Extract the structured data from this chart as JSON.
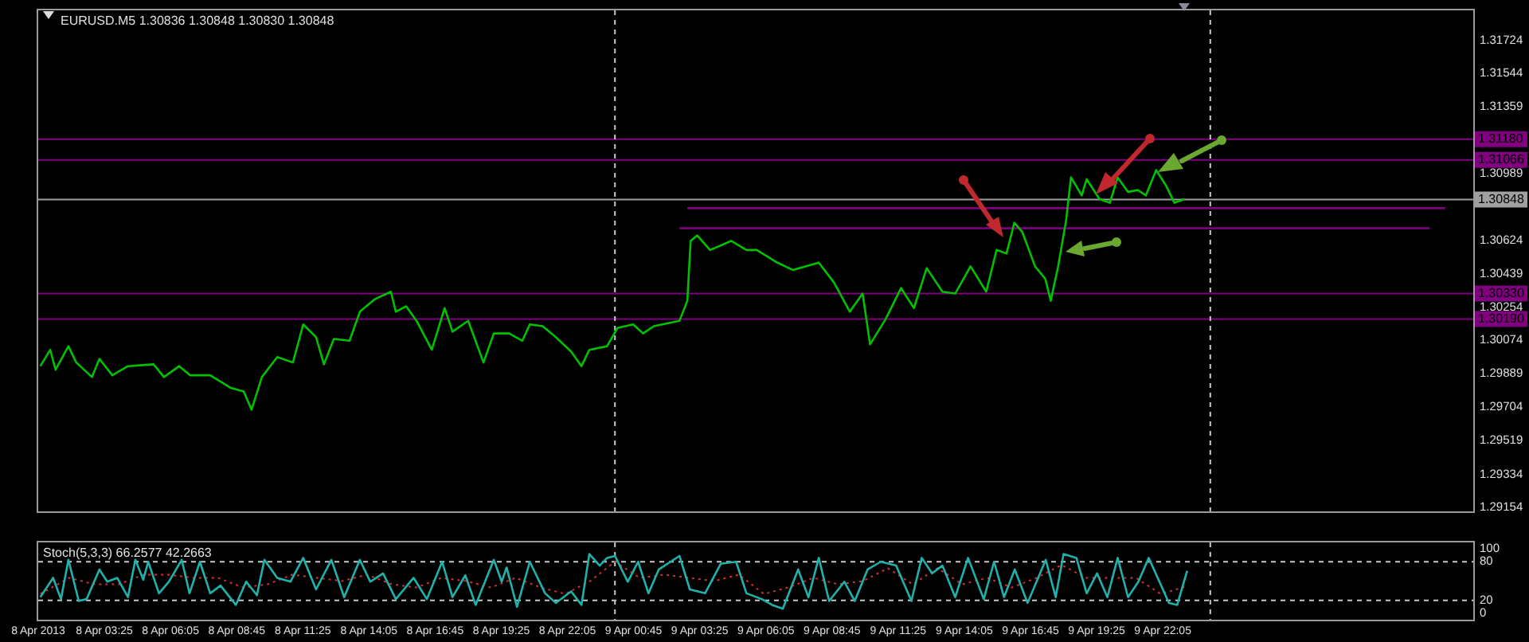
{
  "chart_data": [
    {
      "type": "line",
      "title": "EURUSD.M5 1.30836 1.30848 1.30830 1.30848",
      "tick_labels": "y",
      "xlim": [
        "2013-04-08T00:45",
        "2013-04-10T10:36"
      ],
      "ylim": [
        1.2913,
        1.3189
      ],
      "yticks": [
        1.31724,
        1.31544,
        1.31359,
        1.30989,
        1.30624,
        1.30439,
        1.30254,
        1.30074,
        1.29889,
        1.29704,
        1.29519,
        1.29334,
        1.29154
      ],
      "ref_lines": [
        {
          "axis": "y",
          "value": 1.3118,
          "label": "1.31180",
          "color": "#800080"
        },
        {
          "axis": "y",
          "value": 1.31066,
          "label": "1.31066",
          "color": "#800080"
        },
        {
          "axis": "y",
          "value": 1.3033,
          "label": "1.30330",
          "color": "#800080"
        },
        {
          "axis": "y",
          "value": 1.3019,
          "label": "1.30190",
          "color": "#800080"
        },
        {
          "axis": "y",
          "value": 1.30848,
          "label": "1.30848",
          "color": "#a0a0a0"
        },
        {
          "axis": "x",
          "value": "2013-04-09",
          "color": "#c8c8c8",
          "line_style": "dashed"
        },
        {
          "axis": "x",
          "value": "2013-04-10",
          "color": "#c8c8c8",
          "line_style": "dashed"
        }
      ],
      "series": [
        {
          "type": "line",
          "color": "#00c000",
          "x": [
            "2013-04-08T00:50",
            "2013-04-08T01:14",
            "2013-04-08T01:27",
            "2013-04-08T01:58",
            "2013-04-08T02:17",
            "2013-04-08T02:55",
            "2013-04-08T03:13",
            "2013-04-08T03:44",
            "2013-04-08T04:22",
            "2013-04-08T05:24",
            "2013-04-08T05:49",
            "2013-04-08T06:26",
            "2013-04-08T06:52",
            "2013-04-08T07:41",
            "2013-04-08T08:31",
            "2013-04-08T09:02",
            "2013-04-08T09:21",
            "2013-04-08T09:46",
            "2013-04-08T10:23",
            "2013-04-08T11:01",
            "2013-04-08T11:26",
            "2013-04-08T11:57",
            "2013-04-08T12:16",
            "2013-04-08T12:40",
            "2013-04-08T13:18",
            "2013-04-08T13:43",
            "2013-04-08T14:20",
            "2013-04-08T14:58",
            "2013-04-08T15:10",
            "2013-04-08T15:35",
            "2013-04-08T16:00",
            "2013-04-08T16:37",
            "2013-04-08T17:08",
            "2013-04-08T17:27",
            "2013-04-08T18:05",
            "2013-04-08T18:42",
            "2013-04-08T19:07",
            "2013-04-08T19:44",
            "2013-04-08T20:16",
            "2013-04-08T20:34",
            "2013-04-08T21:05",
            "2013-04-08T21:37",
            "2013-04-08T22:14",
            "2013-04-08T22:39",
            "2013-04-08T22:58",
            "2013-04-08T23:41",
            "2013-04-09T00:06",
            "2013-04-09T00:44",
            "2013-04-09T01:08",
            "2013-04-09T01:34",
            "2013-04-09T02:36",
            "2013-04-09T02:55",
            "2013-04-09T03:03",
            "2013-04-09T03:19",
            "2013-04-09T03:50",
            "2013-04-09T04:41",
            "2013-04-09T05:18",
            "2013-04-09T05:43",
            "2013-04-09T06:33",
            "2013-04-09T07:10",
            "2013-04-09T08:13",
            "2013-04-09T08:50",
            "2013-04-09T09:28",
            "2013-04-09T09:59",
            "2013-04-09T10:17",
            "2013-04-09T10:55",
            "2013-04-09T11:32",
            "2013-04-09T12:03",
            "2013-04-09T12:34",
            "2013-04-09T13:12",
            "2013-04-09T13:43",
            "2013-04-09T14:20",
            "2013-04-09T14:58",
            "2013-04-09T15:23",
            "2013-04-09T15:47",
            "2013-04-09T16:06",
            "2013-04-09T16:25",
            "2013-04-09T16:56",
            "2013-04-09T17:21",
            "2013-04-09T17:34",
            "2013-04-09T17:52",
            "2013-04-09T18:11",
            "2013-04-09T18:23",
            "2013-04-09T18:49",
            "2013-04-09T19:01",
            "2013-04-09T19:32",
            "2013-04-09T19:57",
            "2013-04-09T20:16",
            "2013-04-09T20:41",
            "2013-04-09T21:05",
            "2013-04-09T21:24",
            "2013-04-09T21:49",
            "2013-04-09T22:14",
            "2013-04-09T22:33",
            "2013-04-09T22:58"
          ],
          "values": [
            1.2993,
            1.3002,
            1.2991,
            1.3004,
            1.2995,
            1.2987,
            1.2997,
            1.2988,
            1.2993,
            1.2994,
            1.2987,
            1.2993,
            1.2988,
            1.2988,
            1.2981,
            1.2979,
            1.2969,
            1.2987,
            1.2998,
            1.2995,
            1.3016,
            1.3009,
            1.2994,
            1.3008,
            1.3007,
            1.3023,
            1.303,
            1.3034,
            1.3023,
            1.3026,
            1.3018,
            1.3002,
            1.3025,
            1.3012,
            1.3018,
            1.2995,
            1.3011,
            1.3011,
            1.3007,
            1.3016,
            1.3015,
            1.3009,
            1.3001,
            1.2993,
            1.3002,
            1.3004,
            1.3014,
            1.3016,
            1.3011,
            1.3015,
            1.3018,
            1.3029,
            1.3062,
            1.3065,
            1.3057,
            1.3062,
            1.3057,
            1.3057,
            1.305,
            1.3046,
            1.305,
            1.3039,
            1.3023,
            1.3033,
            1.3005,
            1.3019,
            1.3036,
            1.3025,
            1.3047,
            1.3034,
            1.3033,
            1.3048,
            1.3034,
            1.3057,
            1.3055,
            1.3072,
            1.3067,
            1.3048,
            1.3041,
            1.3029,
            1.3048,
            1.3073,
            1.3097,
            1.3087,
            1.3096,
            1.3085,
            1.3083,
            1.3097,
            1.3089,
            1.309,
            1.3087,
            1.3101,
            1.3092,
            1.3083,
            1.3085
          ]
        },
        {
          "type": "line",
          "color": "#800080",
          "x": [
            "2013-04-09T02:55",
            "2013-04-10T09:28"
          ],
          "values": [
            1.308,
            1.308
          ]
        },
        {
          "type": "line",
          "color": "#800080",
          "x": [
            "2013-04-09T02:36",
            "2013-04-10T08:50"
          ],
          "values": [
            1.3069,
            1.3069
          ]
        }
      ]
    },
    {
      "type": "line",
      "title": "Stoch(5,3,3) 66.2577 42.2663",
      "xlim": [
        "2013-04-08T00:45",
        "2013-04-10T10:36"
      ],
      "xticks": [
        {
          "value": "2013-04-08T00:45",
          "label": "8 Apr 2013"
        },
        {
          "value": "2013-04-08T03:25",
          "label": "8 Apr 03:25"
        },
        {
          "value": "2013-04-08T06:05",
          "label": "8 Apr 06:05"
        },
        {
          "value": "2013-04-08T08:45",
          "label": "8 Apr 08:45"
        },
        {
          "value": "2013-04-08T11:25",
          "label": "8 Apr 11:25"
        },
        {
          "value": "2013-04-08T14:05",
          "label": "8 Apr 14:05"
        },
        {
          "value": "2013-04-08T16:45",
          "label": "8 Apr 16:45"
        },
        {
          "value": "2013-04-08T19:25",
          "label": "8 Apr 19:25"
        },
        {
          "value": "2013-04-08T22:05",
          "label": "8 Apr 22:05"
        },
        {
          "value": "2013-04-09T00:45",
          "label": "9 Apr 00:45"
        },
        {
          "value": "2013-04-09T03:25",
          "label": "9 Apr 03:25"
        },
        {
          "value": "2013-04-09T06:05",
          "label": "9 Apr 06:05"
        },
        {
          "value": "2013-04-09T08:45",
          "label": "9 Apr 08:45"
        },
        {
          "value": "2013-04-09T11:25",
          "label": "9 Apr 11:25"
        },
        {
          "value": "2013-04-09T14:05",
          "label": "9 Apr 14:05"
        },
        {
          "value": "2013-04-09T16:45",
          "label": "9 Apr 16:45"
        },
        {
          "value": "2013-04-09T19:25",
          "label": "9 Apr 19:25"
        },
        {
          "value": "2013-04-09T22:05",
          "label": "9 Apr 22:05"
        }
      ],
      "ylim": [
        -10,
        110
      ],
      "yticks": [
        0,
        20,
        80,
        100
      ],
      "ref_lines": [
        {
          "axis": "y",
          "value": 80,
          "color": "#c8c8c8",
          "line_style": "dashed"
        },
        {
          "axis": "y",
          "value": 20,
          "color": "#c8c8c8",
          "line_style": "dashed"
        },
        {
          "axis": "x",
          "value": "2013-04-09",
          "color": "#c8c8c8",
          "line_style": "dashed"
        },
        {
          "axis": "x",
          "value": "2013-04-10",
          "color": "#c8c8c8",
          "line_style": "dashed"
        }
      ],
      "series": [
        {
          "type": "line",
          "color": "#20b2aa",
          "x": [
            "2013-04-08T00:50",
            "2013-04-08T01:21",
            "2013-04-08T01:40",
            "2013-04-08T01:58",
            "2013-04-08T02:23",
            "2013-04-08T02:42",
            "2013-04-08T03:13",
            "2013-04-08T03:32",
            "2013-04-08T03:56",
            "2013-04-08T04:22",
            "2013-04-08T04:40",
            "2013-04-08T04:59",
            "2013-04-08T05:11",
            "2013-04-08T05:37",
            "2013-04-08T06:01",
            "2013-04-08T06:32",
            "2013-04-08T06:51",
            "2013-04-08T07:16",
            "2013-04-08T07:41",
            "2013-04-08T08:06",
            "2013-04-08T08:43",
            "2013-04-08T09:08",
            "2013-04-08T09:34",
            "2013-04-08T09:52",
            "2013-04-08T10:23",
            "2013-04-08T10:55",
            "2013-04-08T11:26",
            "2013-04-08T11:57",
            "2013-04-08T12:34",
            "2013-04-08T13:05",
            "2013-04-08T13:43",
            "2013-04-08T14:08",
            "2013-04-08T14:39",
            "2013-04-08T15:10",
            "2013-04-08T15:53",
            "2013-04-08T16:25",
            "2013-04-08T17:02",
            "2013-04-08T17:27",
            "2013-04-08T17:58",
            "2013-04-08T18:23",
            "2013-04-08T19:07",
            "2013-04-08T19:26",
            "2013-04-08T19:38",
            "2013-04-08T20:03",
            "2013-04-08T20:34",
            "2013-04-08T21:11",
            "2013-04-08T21:37",
            "2013-04-08T22:14",
            "2013-04-08T22:39",
            "2013-04-08T22:58",
            "2013-04-08T23:23",
            "2013-04-08T23:41",
            "2013-04-09T00:00",
            "2013-04-09T00:31",
            "2013-04-09T00:56",
            "2013-04-09T01:21",
            "2013-04-09T01:46",
            "2013-04-09T02:36",
            "2013-04-09T03:01",
            "2013-04-09T03:38",
            "2013-04-09T04:16",
            "2013-04-09T04:53",
            "2013-04-09T05:18",
            "2013-04-09T05:55",
            "2013-04-09T06:20",
            "2013-04-09T06:46",
            "2013-04-09T07:23",
            "2013-04-09T07:48",
            "2013-04-09T08:13",
            "2013-04-09T08:38",
            "2013-04-09T09:15",
            "2013-04-09T09:40",
            "2013-04-09T10:11",
            "2013-04-09T10:43",
            "2013-04-09T11:20",
            "2013-04-09T11:57",
            "2013-04-09T12:22",
            "2013-04-09T12:47",
            "2013-04-09T13:12",
            "2013-04-09T13:43",
            "2013-04-09T14:14",
            "2013-04-09T14:52",
            "2013-04-09T15:17",
            "2013-04-09T15:41",
            "2013-04-09T16:07",
            "2013-04-09T16:38",
            "2013-04-09T17:22",
            "2013-04-09T17:46",
            "2013-04-09T18:05",
            "2013-04-09T18:36",
            "2013-04-09T19:01",
            "2013-04-09T19:26",
            "2013-04-09T19:51",
            "2013-04-09T20:16",
            "2013-04-09T20:41",
            "2013-04-09T21:06",
            "2013-04-09T21:31",
            "2013-04-09T22:20",
            "2013-04-09T22:40",
            "2013-04-09T23:04"
          ],
          "values": [
            25,
            55,
            22,
            83,
            19,
            22,
            68,
            49,
            55,
            25,
            83,
            52,
            80,
            31,
            49,
            83,
            31,
            80,
            31,
            43,
            13,
            49,
            28,
            83,
            55,
            49,
            86,
            37,
            83,
            25,
            83,
            49,
            62,
            22,
            55,
            22,
            80,
            25,
            59,
            13,
            83,
            49,
            71,
            10,
            80,
            31,
            16,
            34,
            13,
            92,
            74,
            86,
            89,
            49,
            80,
            31,
            68,
            89,
            37,
            31,
            77,
            80,
            31,
            22,
            13,
            7,
            68,
            25,
            86,
            19,
            49,
            19,
            68,
            80,
            74,
            19,
            86,
            62,
            74,
            25,
            86,
            22,
            80,
            25,
            68,
            16,
            83,
            25,
            92,
            86,
            31,
            62,
            25,
            86,
            25,
            49,
            86,
            16,
            13,
            66
          ]
        },
        {
          "type": "line",
          "color": "#d03030",
          "line_style": "dotted",
          "x": [
            "2013-04-08T00:50",
            "2013-04-08T02:00",
            "2013-04-08T03:00",
            "2013-04-08T04:00",
            "2013-04-08T05:00",
            "2013-04-08T06:00",
            "2013-04-08T07:00",
            "2013-04-08T08:00",
            "2013-04-08T09:00",
            "2013-04-08T10:00",
            "2013-04-08T11:00",
            "2013-04-08T12:00",
            "2013-04-08T13:00",
            "2013-04-08T14:00",
            "2013-04-08T15:00",
            "2013-04-08T16:00",
            "2013-04-08T17:00",
            "2013-04-08T18:00",
            "2013-04-08T19:00",
            "2013-04-08T20:00",
            "2013-04-08T21:00",
            "2013-04-08T22:00",
            "2013-04-08T23:00",
            "2013-04-09T00:00",
            "2013-04-09T01:00",
            "2013-04-09T02:00",
            "2013-04-09T03:00",
            "2013-04-09T04:00",
            "2013-04-09T05:00",
            "2013-04-09T06:00",
            "2013-04-09T07:00",
            "2013-04-09T08:00",
            "2013-04-09T09:00",
            "2013-04-09T10:00",
            "2013-04-09T11:00",
            "2013-04-09T12:00",
            "2013-04-09T13:00",
            "2013-04-09T14:00",
            "2013-04-09T15:00",
            "2013-04-09T16:00",
            "2013-04-09T17:00",
            "2013-04-09T18:00",
            "2013-04-09T19:00",
            "2013-04-09T20:00",
            "2013-04-09T21:00",
            "2013-04-09T22:00",
            "2013-04-09T23:04"
          ],
          "values": [
            30,
            55,
            45,
            45,
            60,
            60,
            55,
            55,
            40,
            45,
            60,
            55,
            50,
            60,
            45,
            40,
            55,
            50,
            40,
            55,
            40,
            30,
            50,
            80,
            55,
            60,
            55,
            50,
            60,
            30,
            40,
            55,
            45,
            50,
            70,
            45,
            70,
            45,
            55,
            40,
            55,
            75,
            55,
            55,
            55,
            30,
            42
          ]
        }
      ]
    }
  ]
}
